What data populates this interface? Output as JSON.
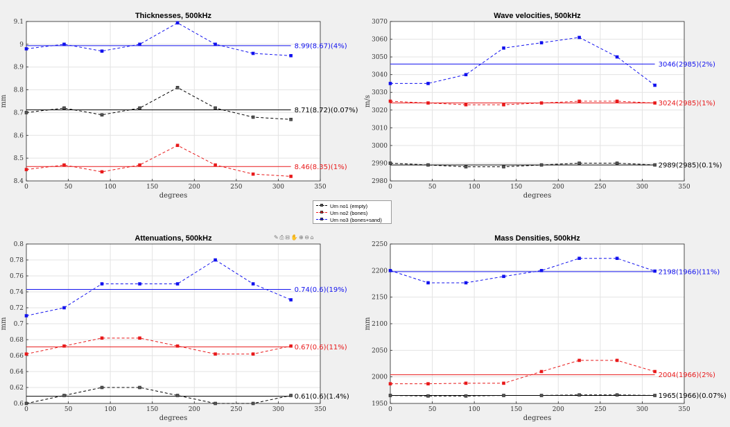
{
  "xticks": [
    "0",
    "50",
    "100",
    "150",
    "200",
    "250",
    "300",
    "350"
  ],
  "legend": [
    {
      "label": "Urn no1 (empty)",
      "color": "#000000"
    },
    {
      "label": "Urn no2 (bones)",
      "color": "#e8191a"
    },
    {
      "label": "Urn no3 (bones+sand)",
      "color": "#1111ee"
    }
  ],
  "toolbar": {
    "brush": "✎",
    "save": "⎙",
    "datatip": "⊟",
    "pan": "✋",
    "zoom_in": "⊕",
    "zoom_out": "⊖",
    "home": "⌂"
  },
  "chart_data": [
    {
      "type": "line",
      "title": "Thicknesses, 500kHz",
      "xlabel": "degrees",
      "ylabel": "mm",
      "xlim": [
        0,
        350
      ],
      "ylim": [
        8.4,
        9.1
      ],
      "grid": true,
      "yticks": [
        "8.4",
        "8.5",
        "8.6",
        "8.7",
        "8.8",
        "8.9",
        "9",
        "9.1"
      ],
      "x": [
        0,
        45,
        90,
        135,
        180,
        225,
        270,
        315
      ],
      "series": [
        {
          "name": "Urn no1 (empty)",
          "color": "#000000",
          "values": [
            8.7,
            8.72,
            8.69,
            8.72,
            8.81,
            8.72,
            8.68,
            8.67
          ],
          "mean": 8.712,
          "label": "8.71(8.72)(0.07%)"
        },
        {
          "name": "Urn no2 (bones)",
          "color": "#e8191a",
          "values": [
            8.45,
            8.47,
            8.44,
            8.47,
            8.556,
            8.47,
            8.43,
            8.42
          ],
          "mean": 8.463,
          "label": "8.46(8.35)(1%)"
        },
        {
          "name": "Urn no3 (bones+sand)",
          "color": "#1111ee",
          "values": [
            8.98,
            9.0,
            8.97,
            9.0,
            9.094,
            9.0,
            8.96,
            8.95
          ],
          "mean": 8.994,
          "label": "8.99(8.67)(4%)"
        }
      ]
    },
    {
      "type": "line",
      "title": "Wave velocities, 500kHz",
      "xlabel": "degrees",
      "ylabel": "m/s",
      "xlim": [
        0,
        350
      ],
      "ylim": [
        2980,
        3070
      ],
      "grid": true,
      "yticks": [
        "2980",
        "2990",
        "3000",
        "3010",
        "3020",
        "3030",
        "3040",
        "3050",
        "3060",
        "3070"
      ],
      "x": [
        0,
        45,
        90,
        135,
        180,
        225,
        270,
        315
      ],
      "series": [
        {
          "name": "Urn no1 (empty)",
          "color": "#000000",
          "values": [
            2990,
            2989,
            2988,
            2988,
            2989,
            2990,
            2990,
            2989
          ],
          "mean": 2989,
          "label": "2989(2985)(0.1%)"
        },
        {
          "name": "Urn no2 (bones)",
          "color": "#e8191a",
          "values": [
            3025,
            3024,
            3023,
            3023,
            3024,
            3025,
            3025,
            3024
          ],
          "mean": 3024,
          "label": "3024(2985)(1%)"
        },
        {
          "name": "Urn no3 (bones+sand)",
          "color": "#1111ee",
          "values": [
            3035,
            3035,
            3040,
            3055,
            3058,
            3061,
            3050,
            3034
          ],
          "mean": 3046,
          "label": "3046(2985)(2%)"
        }
      ]
    },
    {
      "type": "line",
      "title": "Attenuations, 500kHz",
      "xlabel": "degrees",
      "ylabel": "mm",
      "xlim": [
        0,
        350
      ],
      "ylim": [
        0.6,
        0.8
      ],
      "grid": true,
      "yticks": [
        "0.6",
        "0.62",
        "0.64",
        "0.66",
        "0.68",
        "0.7",
        "0.72",
        "0.74",
        "0.76",
        "0.78",
        "0.8"
      ],
      "x": [
        0,
        45,
        90,
        135,
        180,
        225,
        270,
        315
      ],
      "series": [
        {
          "name": "Urn no1 (empty)",
          "color": "#000000",
          "values": [
            0.6,
            0.61,
            0.62,
            0.62,
            0.61,
            0.6,
            0.6,
            0.61
          ],
          "mean": 0.609,
          "label": "0.61(0.6)(1.4%)"
        },
        {
          "name": "Urn no2 (bones)",
          "color": "#e8191a",
          "values": [
            0.662,
            0.672,
            0.682,
            0.682,
            0.672,
            0.662,
            0.662,
            0.672
          ],
          "mean": 0.671,
          "label": "0.67(0.6)(11%)"
        },
        {
          "name": "Urn no3 (bones+sand)",
          "color": "#1111ee",
          "values": [
            0.71,
            0.72,
            0.75,
            0.75,
            0.75,
            0.78,
            0.75,
            0.73
          ],
          "mean": 0.743,
          "label": "0.74(0.6)(19%)"
        }
      ]
    },
    {
      "type": "line",
      "title": "Mass Densities, 500kHz",
      "xlabel": "degrees",
      "ylabel": "mm",
      "xlim": [
        0,
        350
      ],
      "ylim": [
        1950,
        2250
      ],
      "grid": true,
      "yticks": [
        "1950",
        "2000",
        "2050",
        "2100",
        "2150",
        "2200",
        "2250"
      ],
      "x": [
        0,
        45,
        90,
        135,
        180,
        225,
        270,
        315
      ],
      "series": [
        {
          "name": "Urn no1 (empty)",
          "color": "#000000",
          "values": [
            1965,
            1964,
            1964,
            1965,
            1965,
            1966,
            1966,
            1965
          ],
          "mean": 1965,
          "label": "1965(1966)(0.07%)"
        },
        {
          "name": "Urn no2 (bones)",
          "color": "#e8191a",
          "values": [
            1987,
            1987,
            1988,
            1988,
            2010,
            2031,
            2031,
            2010
          ],
          "mean": 2004,
          "label": "2004(1966)(2%)"
        },
        {
          "name": "Urn no3 (bones+sand)",
          "color": "#1111ee",
          "values": [
            2200,
            2177,
            2177,
            2189,
            2200,
            2223,
            2223,
            2199
          ],
          "mean": 2198,
          "label": "2198(1966)(11%)"
        }
      ]
    }
  ]
}
